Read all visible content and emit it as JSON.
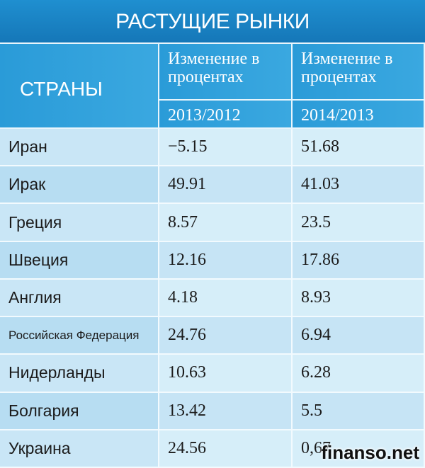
{
  "title": "РАСТУЩИЕ РЫНКИ",
  "header": {
    "country": "СТРАНЫ",
    "columns": [
      {
        "label": "Изменение в процентах",
        "period": "2013/2012"
      },
      {
        "label": "Изменение в процентах",
        "period": "2014/2013"
      }
    ]
  },
  "table": {
    "rows": [
      [
        "Иран",
        "−5.15",
        "51.68"
      ],
      [
        "Ирак",
        "49.91",
        "41.03"
      ],
      [
        "Греция",
        "8.57",
        "23.5"
      ],
      [
        "Швеция",
        "12.16",
        "17.86"
      ],
      [
        "Англия",
        "4.18",
        "8.93"
      ],
      [
        "Российская Федерация",
        "24.76",
        "6.94"
      ],
      [
        "Нидерланды",
        "10.63",
        "6.28"
      ],
      [
        "Болгария",
        "13.42",
        "5.5"
      ],
      [
        "Украина",
        "24.56",
        "0,67"
      ]
    ]
  },
  "watermark": "finanso.net"
}
